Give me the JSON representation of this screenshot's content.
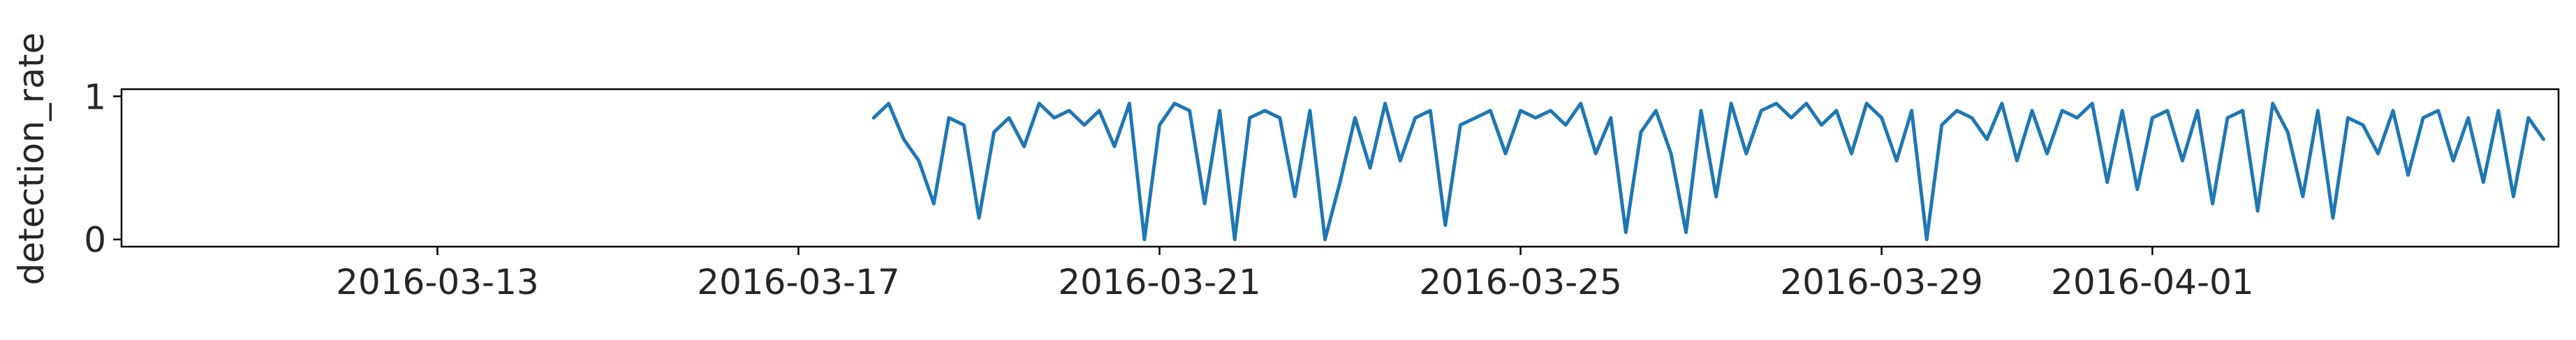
{
  "chart_data": {
    "type": "line",
    "title": "",
    "xlabel": "",
    "ylabel": "detection_rate",
    "x_type": "date",
    "xlim": [
      "2016-03-09T12:00",
      "2016-04-05T12:00"
    ],
    "ylim": [
      -0.05,
      1.05
    ],
    "x_ticks": [
      "2016-03-13",
      "2016-03-17",
      "2016-03-21",
      "2016-03-25",
      "2016-03-29",
      "2016-04-01"
    ],
    "y_ticks": [
      0,
      1
    ],
    "y_tick_labels": [
      "0",
      "1"
    ],
    "grid": false,
    "legend": "none",
    "line_color": "#1f77b4",
    "series": [
      {
        "x": [
          "2016-03-17T20:00",
          "2016-03-18T00:00",
          "2016-03-18T04:00",
          "2016-03-18T08:00",
          "2016-03-18T12:00",
          "2016-03-18T16:00",
          "2016-03-18T20:00",
          "2016-03-19T00:00",
          "2016-03-19T04:00",
          "2016-03-19T08:00",
          "2016-03-19T12:00",
          "2016-03-19T16:00",
          "2016-03-19T20:00",
          "2016-03-20T00:00",
          "2016-03-20T04:00",
          "2016-03-20T08:00",
          "2016-03-20T12:00",
          "2016-03-20T16:00",
          "2016-03-20T20:00",
          "2016-03-21T00:00",
          "2016-03-21T04:00",
          "2016-03-21T08:00",
          "2016-03-21T12:00",
          "2016-03-21T16:00",
          "2016-03-21T20:00",
          "2016-03-22T00:00",
          "2016-03-22T04:00",
          "2016-03-22T08:00",
          "2016-03-22T12:00",
          "2016-03-22T16:00",
          "2016-03-22T20:00",
          "2016-03-23T00:00",
          "2016-03-23T04:00",
          "2016-03-23T08:00",
          "2016-03-23T12:00",
          "2016-03-23T16:00",
          "2016-03-23T20:00",
          "2016-03-24T00:00",
          "2016-03-24T04:00",
          "2016-03-24T08:00",
          "2016-03-24T12:00",
          "2016-03-24T16:00",
          "2016-03-24T20:00",
          "2016-03-25T00:00",
          "2016-03-25T04:00",
          "2016-03-25T08:00",
          "2016-03-25T12:00",
          "2016-03-25T16:00",
          "2016-03-25T20:00",
          "2016-03-26T00:00",
          "2016-03-26T04:00",
          "2016-03-26T08:00",
          "2016-03-26T12:00",
          "2016-03-26T16:00",
          "2016-03-26T20:00",
          "2016-03-27T00:00",
          "2016-03-27T04:00",
          "2016-03-27T08:00",
          "2016-03-27T12:00",
          "2016-03-27T16:00",
          "2016-03-27T20:00",
          "2016-03-28T00:00",
          "2016-03-28T04:00",
          "2016-03-28T08:00",
          "2016-03-28T12:00",
          "2016-03-28T16:00",
          "2016-03-28T20:00",
          "2016-03-29T00:00",
          "2016-03-29T04:00",
          "2016-03-29T08:00",
          "2016-03-29T12:00",
          "2016-03-29T16:00",
          "2016-03-29T20:00",
          "2016-03-30T00:00",
          "2016-03-30T04:00",
          "2016-03-30T08:00",
          "2016-03-30T12:00",
          "2016-03-30T16:00",
          "2016-03-30T20:00",
          "2016-03-31T00:00",
          "2016-03-31T04:00",
          "2016-03-31T08:00",
          "2016-03-31T12:00",
          "2016-03-31T16:00",
          "2016-03-31T20:00",
          "2016-04-01T00:00",
          "2016-04-01T04:00",
          "2016-04-01T08:00",
          "2016-04-01T12:00",
          "2016-04-01T16:00",
          "2016-04-01T20:00",
          "2016-04-02T00:00",
          "2016-04-02T04:00",
          "2016-04-02T08:00",
          "2016-04-02T12:00",
          "2016-04-02T16:00",
          "2016-04-02T20:00",
          "2016-04-03T00:00",
          "2016-04-03T04:00",
          "2016-04-03T08:00",
          "2016-04-03T12:00",
          "2016-04-03T16:00",
          "2016-04-03T20:00",
          "2016-04-04T00:00",
          "2016-04-04T04:00",
          "2016-04-04T08:00",
          "2016-04-04T12:00",
          "2016-04-04T16:00",
          "2016-04-04T20:00",
          "2016-04-05T00:00",
          "2016-04-05T04:00",
          "2016-04-05T08:00"
        ],
        "values": [
          0.85,
          0.95,
          0.7,
          0.55,
          0.25,
          0.85,
          0.8,
          0.15,
          0.75,
          0.85,
          0.65,
          0.95,
          0.85,
          0.9,
          0.8,
          0.9,
          0.65,
          0.95,
          0.0,
          0.8,
          0.95,
          0.9,
          0.25,
          0.9,
          0.0,
          0.85,
          0.9,
          0.85,
          0.3,
          0.9,
          0.0,
          0.4,
          0.85,
          0.5,
          0.95,
          0.55,
          0.85,
          0.9,
          0.1,
          0.8,
          0.85,
          0.9,
          0.6,
          0.9,
          0.85,
          0.9,
          0.8,
          0.95,
          0.6,
          0.85,
          0.05,
          0.75,
          0.9,
          0.6,
          0.05,
          0.9,
          0.3,
          0.95,
          0.6,
          0.9,
          0.95,
          0.85,
          0.95,
          0.8,
          0.9,
          0.6,
          0.95,
          0.85,
          0.55,
          0.9,
          0.0,
          0.8,
          0.9,
          0.85,
          0.7,
          0.95,
          0.55,
          0.9,
          0.6,
          0.9,
          0.85,
          0.95,
          0.4,
          0.9,
          0.35,
          0.85,
          0.9,
          0.55,
          0.9,
          0.25,
          0.85,
          0.9,
          0.2,
          0.95,
          0.75,
          0.3,
          0.9,
          0.15,
          0.85,
          0.8,
          0.6,
          0.9,
          0.45,
          0.85,
          0.9,
          0.55,
          0.85,
          0.4,
          0.9,
          0.3,
          0.85,
          0.7
        ]
      }
    ]
  }
}
